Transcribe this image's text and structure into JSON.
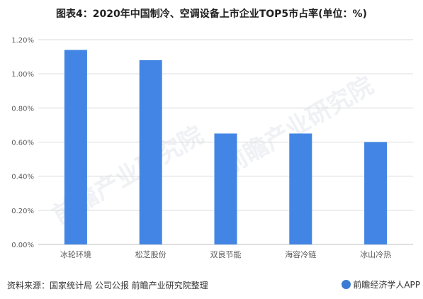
{
  "header": {
    "title": "图表4：2020年中国制冷、空调设备上市企业TOP5市占率(单位：%)"
  },
  "footer": {
    "source": "资料来源：国家统计局 公司公报 前瞻产业研究院整理",
    "brand": "前瞻经济学人APP"
  },
  "watermark": {
    "text": "前瞻产业研究院"
  },
  "colors": {
    "bar": "#4285e4",
    "grid": "#d9d9d9",
    "axis": "#bfbfbf",
    "text": "#595959"
  },
  "chart_data": {
    "type": "bar",
    "categories": [
      "冰轮环境",
      "松芝股份",
      "双良节能",
      "海容冷链",
      "冰山冷热"
    ],
    "values": [
      1.14,
      1.08,
      0.65,
      0.65,
      0.6
    ],
    "ylim": [
      0,
      1.2
    ],
    "yticks": [
      0,
      0.2,
      0.4,
      0.6,
      0.8,
      1.0,
      1.2
    ],
    "ytick_labels": [
      "0.00%",
      "0.20%",
      "0.40%",
      "0.60%",
      "0.80%",
      "1.00%",
      "1.20%"
    ],
    "grid": true,
    "legend": "none"
  }
}
